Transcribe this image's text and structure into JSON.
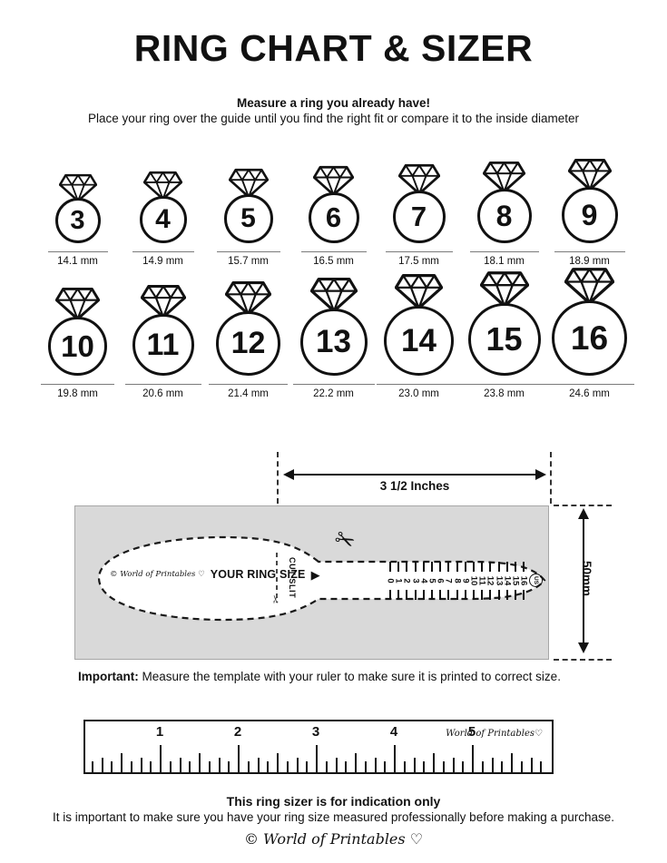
{
  "header": {
    "title": "RING CHART & SIZER",
    "subtitle_bold": "Measure a ring you already have!",
    "subtitle": "Place your ring over the guide until you find the right fit or compare it to the inside diameter"
  },
  "rings": [
    {
      "size": "3",
      "diameter": "14.1 mm"
    },
    {
      "size": "4",
      "diameter": "14.9 mm"
    },
    {
      "size": "5",
      "diameter": "15.7 mm"
    },
    {
      "size": "6",
      "diameter": "16.5 mm"
    },
    {
      "size": "7",
      "diameter": "17.5 mm"
    },
    {
      "size": "8",
      "diameter": "18.1 mm"
    },
    {
      "size": "9",
      "diameter": "18.9 mm"
    },
    {
      "size": "10",
      "diameter": "19.8 mm"
    },
    {
      "size": "11",
      "diameter": "20.6 mm"
    },
    {
      "size": "12",
      "diameter": "21.4 mm"
    },
    {
      "size": "13",
      "diameter": "22.2 mm"
    },
    {
      "size": "14",
      "diameter": "23.0 mm"
    },
    {
      "size": "15",
      "diameter": "23.8 mm"
    },
    {
      "size": "16",
      "diameter": "24.6 mm"
    }
  ],
  "sizer": {
    "width_label": "3 1/2 Inches",
    "height_label": "50mm",
    "brand": "© World of Printables ♡",
    "your_ring_size": "YOUR RING SIZE",
    "pointer": "▶",
    "cut_slit": "CUT SLIT",
    "scissors": "✂",
    "scale_numbers": [
      "0",
      "1",
      "2",
      "3",
      "4",
      "5",
      "6",
      "7",
      "8",
      "9",
      "10",
      "11",
      "12",
      "13",
      "14",
      "15",
      "16"
    ],
    "scale_unit": "US"
  },
  "important": {
    "bold": "Important:",
    "text": " Measure the template with your ruler to make sure it is printed to correct size."
  },
  "ruler": {
    "numbers": [
      "1",
      "2",
      "3",
      "4",
      "5"
    ],
    "brand": "World of Printables♡"
  },
  "footer": {
    "bold": "This ring sizer is for indication only",
    "text": "It is important to make sure you have your ring size measured professionally before making a purchase.",
    "brand": "© World of Printables ♡"
  },
  "colors": {
    "gray_box": "#d9d9d9",
    "ink": "#111111"
  }
}
